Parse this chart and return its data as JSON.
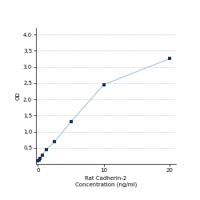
{
  "x": [
    0,
    0.156,
    0.312,
    0.625,
    1.25,
    2.5,
    5,
    10,
    20
  ],
  "y": [
    0.1,
    0.13,
    0.18,
    0.28,
    0.45,
    0.68,
    1.3,
    2.45,
    3.25
  ],
  "line_color": "#aac8e0",
  "marker_color": "#1a3560",
  "marker_size": 3.5,
  "xlabel_line1": "Rat Cadherin-2",
  "xlabel_line2": "Concentration (ng/ml)",
  "ylabel": "OD",
  "xlim": [
    -0.3,
    21
  ],
  "ylim": [
    0,
    4.2
  ],
  "xticks": [
    0,
    10,
    20
  ],
  "yticks": [
    0.5,
    1.0,
    1.5,
    2.0,
    2.5,
    3.0,
    3.5,
    4.0
  ],
  "grid_color": "#cccccc",
  "background_color": "#ffffff",
  "tick_fontsize": 5,
  "label_fontsize": 5
}
